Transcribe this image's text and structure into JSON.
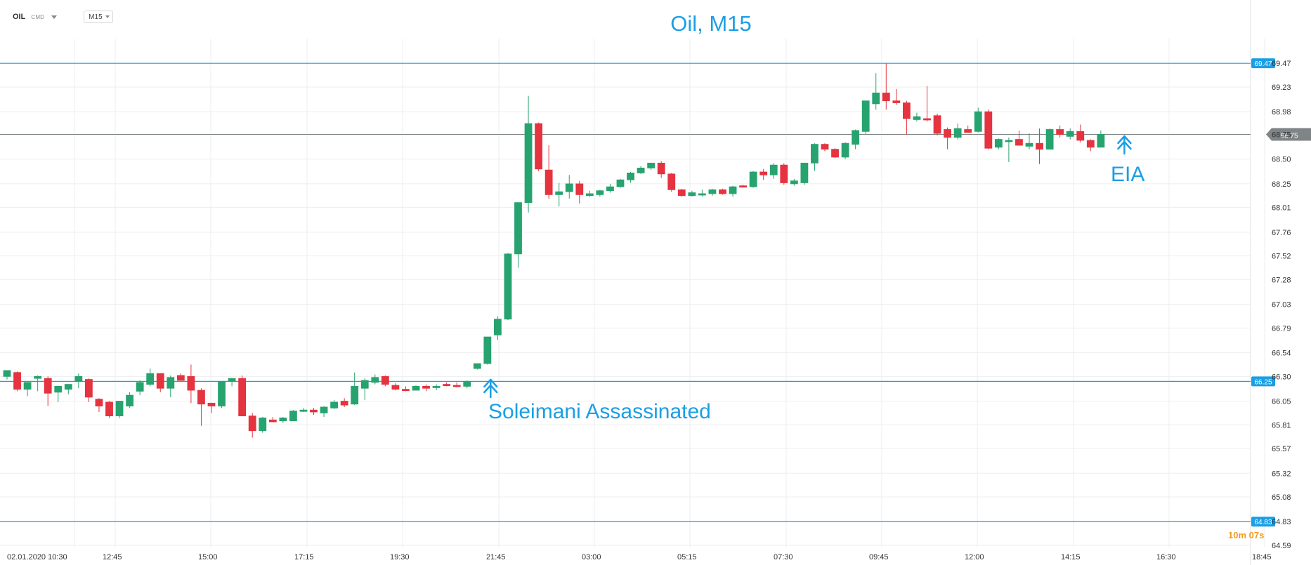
{
  "header": {
    "symbol": "OIL",
    "market": "CMD",
    "timeframe": "M15"
  },
  "colors": {
    "up": "#26a36f",
    "down": "#e5333f",
    "blue": "#1a9fe6",
    "gray": "#7f8486",
    "grid": "#eeeeee",
    "timer": "#f29a19"
  },
  "icons": {
    "annotation_arrow": "up-arrow-icon",
    "dropdown": "chevron-down-icon"
  },
  "chart_data": {
    "type": "candlestick",
    "title": "Oil, M15",
    "timeframe": "M15",
    "x_axis_labels": [
      "02.01.2020  10:30",
      "12:45",
      "15:00",
      "17:15",
      "19:30",
      "21:45",
      "03:00",
      "05:15",
      "07:30",
      "09:45",
      "12:00",
      "14:15",
      "16:30",
      "18:45"
    ],
    "y_ticks": [
      69.47,
      69.23,
      68.98,
      68.75,
      68.5,
      68.25,
      68.01,
      67.76,
      67.52,
      67.28,
      67.03,
      66.79,
      66.54,
      66.3,
      66.05,
      65.81,
      65.57,
      65.32,
      65.08,
      64.83,
      64.59
    ],
    "y_range": [
      64.59,
      69.72
    ],
    "candles": [
      {
        "o": 66.3,
        "h": 66.36,
        "l": 66.27,
        "c": 66.36
      },
      {
        "o": 66.34,
        "h": 66.35,
        "l": 66.15,
        "c": 66.17
      },
      {
        "o": 66.17,
        "h": 66.24,
        "l": 66.1,
        "c": 66.24
      },
      {
        "o": 66.28,
        "h": 66.31,
        "l": 66.15,
        "c": 66.3
      },
      {
        "o": 66.28,
        "h": 66.3,
        "l": 66.0,
        "c": 66.13
      },
      {
        "o": 66.14,
        "h": 66.19,
        "l": 66.04,
        "c": 66.2
      },
      {
        "o": 66.17,
        "h": 66.22,
        "l": 66.12,
        "c": 66.22
      },
      {
        "o": 66.25,
        "h": 66.33,
        "l": 66.18,
        "c": 66.3
      },
      {
        "o": 66.27,
        "h": 66.28,
        "l": 66.04,
        "c": 66.09
      },
      {
        "o": 66.07,
        "h": 66.08,
        "l": 65.94,
        "c": 66.0
      },
      {
        "o": 66.04,
        "h": 66.05,
        "l": 65.88,
        "c": 65.9
      },
      {
        "o": 65.9,
        "h": 66.04,
        "l": 65.88,
        "c": 66.05
      },
      {
        "o": 66.0,
        "h": 66.14,
        "l": 65.98,
        "c": 66.11
      },
      {
        "o": 66.15,
        "h": 66.26,
        "l": 66.11,
        "c": 66.24
      },
      {
        "o": 66.22,
        "h": 66.38,
        "l": 66.2,
        "c": 66.33
      },
      {
        "o": 66.33,
        "h": 66.33,
        "l": 66.14,
        "c": 66.18
      },
      {
        "o": 66.18,
        "h": 66.31,
        "l": 66.09,
        "c": 66.29
      },
      {
        "o": 66.31,
        "h": 66.33,
        "l": 66.26,
        "c": 66.26
      },
      {
        "o": 66.3,
        "h": 66.42,
        "l": 66.03,
        "c": 66.16
      },
      {
        "o": 66.16,
        "h": 66.18,
        "l": 65.8,
        "c": 66.02
      },
      {
        "o": 66.03,
        "h": 66.03,
        "l": 65.93,
        "c": 66.0
      },
      {
        "o": 66.0,
        "h": 66.25,
        "l": 65.98,
        "c": 66.25
      },
      {
        "o": 66.25,
        "h": 66.28,
        "l": 66.2,
        "c": 66.28
      },
      {
        "o": 66.28,
        "h": 66.31,
        "l": 65.9,
        "c": 65.9
      },
      {
        "o": 65.9,
        "h": 65.93,
        "l": 65.68,
        "c": 65.75
      },
      {
        "o": 65.75,
        "h": 65.89,
        "l": 65.73,
        "c": 65.88
      },
      {
        "o": 65.86,
        "h": 65.89,
        "l": 65.84,
        "c": 65.84
      },
      {
        "o": 65.85,
        "h": 65.89,
        "l": 65.83,
        "c": 65.88
      },
      {
        "o": 65.85,
        "h": 65.96,
        "l": 65.85,
        "c": 65.95
      },
      {
        "o": 65.95,
        "h": 65.98,
        "l": 65.94,
        "c": 65.96
      },
      {
        "o": 65.96,
        "h": 65.98,
        "l": 65.91,
        "c": 65.94
      },
      {
        "o": 65.93,
        "h": 66.0,
        "l": 65.89,
        "c": 65.99
      },
      {
        "o": 65.98,
        "h": 66.06,
        "l": 65.97,
        "c": 66.04
      },
      {
        "o": 66.05,
        "h": 66.08,
        "l": 65.99,
        "c": 66.01
      },
      {
        "o": 66.02,
        "h": 66.34,
        "l": 66.01,
        "c": 66.2
      },
      {
        "o": 66.18,
        "h": 66.28,
        "l": 66.06,
        "c": 66.26
      },
      {
        "o": 66.24,
        "h": 66.32,
        "l": 66.22,
        "c": 66.29
      },
      {
        "o": 66.3,
        "h": 66.31,
        "l": 66.2,
        "c": 66.22
      },
      {
        "o": 66.21,
        "h": 66.23,
        "l": 66.16,
        "c": 66.17
      },
      {
        "o": 66.17,
        "h": 66.2,
        "l": 66.15,
        "c": 66.16
      },
      {
        "o": 66.16,
        "h": 66.21,
        "l": 66.16,
        "c": 66.2
      },
      {
        "o": 66.2,
        "h": 66.22,
        "l": 66.15,
        "c": 66.18
      },
      {
        "o": 66.19,
        "h": 66.22,
        "l": 66.16,
        "c": 66.2
      },
      {
        "o": 66.22,
        "h": 66.24,
        "l": 66.2,
        "c": 66.21
      },
      {
        "o": 66.21,
        "h": 66.24,
        "l": 66.19,
        "c": 66.2
      },
      {
        "o": 66.2,
        "h": 66.26,
        "l": 66.18,
        "c": 66.25
      },
      {
        "o": 66.38,
        "h": 66.43,
        "l": 66.37,
        "c": 66.43
      },
      {
        "o": 66.43,
        "h": 66.7,
        "l": 66.42,
        "c": 66.7
      },
      {
        "o": 66.72,
        "h": 66.91,
        "l": 66.67,
        "c": 66.88
      },
      {
        "o": 66.88,
        "h": 67.55,
        "l": 66.87,
        "c": 67.54
      },
      {
        "o": 67.54,
        "h": 68.06,
        "l": 67.4,
        "c": 68.06
      },
      {
        "o": 68.06,
        "h": 69.14,
        "l": 67.96,
        "c": 68.86
      },
      {
        "o": 68.86,
        "h": 68.87,
        "l": 68.38,
        "c": 68.4
      },
      {
        "o": 68.39,
        "h": 68.64,
        "l": 68.1,
        "c": 68.14
      },
      {
        "o": 68.14,
        "h": 68.26,
        "l": 68.02,
        "c": 68.17
      },
      {
        "o": 68.17,
        "h": 68.34,
        "l": 68.1,
        "c": 68.25
      },
      {
        "o": 68.25,
        "h": 68.28,
        "l": 68.05,
        "c": 68.14
      },
      {
        "o": 68.13,
        "h": 68.18,
        "l": 68.12,
        "c": 68.15
      },
      {
        "o": 68.14,
        "h": 68.19,
        "l": 68.12,
        "c": 68.18
      },
      {
        "o": 68.18,
        "h": 68.25,
        "l": 68.16,
        "c": 68.22
      },
      {
        "o": 68.22,
        "h": 68.3,
        "l": 68.21,
        "c": 68.29
      },
      {
        "o": 68.29,
        "h": 68.37,
        "l": 68.26,
        "c": 68.36
      },
      {
        "o": 68.36,
        "h": 68.43,
        "l": 68.35,
        "c": 68.41
      },
      {
        "o": 68.41,
        "h": 68.46,
        "l": 68.39,
        "c": 68.46
      },
      {
        "o": 68.46,
        "h": 68.48,
        "l": 68.31,
        "c": 68.35
      },
      {
        "o": 68.35,
        "h": 68.36,
        "l": 68.17,
        "c": 68.19
      },
      {
        "o": 68.19,
        "h": 68.2,
        "l": 68.12,
        "c": 68.13
      },
      {
        "o": 68.13,
        "h": 68.18,
        "l": 68.12,
        "c": 68.16
      },
      {
        "o": 68.14,
        "h": 68.19,
        "l": 68.12,
        "c": 68.15
      },
      {
        "o": 68.15,
        "h": 68.2,
        "l": 68.13,
        "c": 68.19
      },
      {
        "o": 68.19,
        "h": 68.2,
        "l": 68.14,
        "c": 68.15
      },
      {
        "o": 68.15,
        "h": 68.23,
        "l": 68.12,
        "c": 68.22
      },
      {
        "o": 68.23,
        "h": 68.24,
        "l": 68.21,
        "c": 68.22
      },
      {
        "o": 68.22,
        "h": 68.38,
        "l": 68.21,
        "c": 68.37
      },
      {
        "o": 68.37,
        "h": 68.4,
        "l": 68.29,
        "c": 68.34
      },
      {
        "o": 68.34,
        "h": 68.46,
        "l": 68.3,
        "c": 68.44
      },
      {
        "o": 68.44,
        "h": 68.46,
        "l": 68.24,
        "c": 68.26
      },
      {
        "o": 68.25,
        "h": 68.3,
        "l": 68.23,
        "c": 68.28
      },
      {
        "o": 68.26,
        "h": 68.46,
        "l": 68.24,
        "c": 68.46
      },
      {
        "o": 68.46,
        "h": 68.66,
        "l": 68.38,
        "c": 68.65
      },
      {
        "o": 68.65,
        "h": 68.66,
        "l": 68.58,
        "c": 68.6
      },
      {
        "o": 68.6,
        "h": 68.61,
        "l": 68.51,
        "c": 68.52
      },
      {
        "o": 68.52,
        "h": 68.67,
        "l": 68.5,
        "c": 68.66
      },
      {
        "o": 68.65,
        "h": 68.8,
        "l": 68.6,
        "c": 68.79
      },
      {
        "o": 68.78,
        "h": 69.09,
        "l": 68.75,
        "c": 69.09
      },
      {
        "o": 69.06,
        "h": 69.37,
        "l": 69.0,
        "c": 69.17
      },
      {
        "o": 69.17,
        "h": 69.47,
        "l": 69.0,
        "c": 69.09
      },
      {
        "o": 69.09,
        "h": 69.21,
        "l": 69.05,
        "c": 69.07
      },
      {
        "o": 69.07,
        "h": 69.09,
        "l": 68.75,
        "c": 68.91
      },
      {
        "o": 68.9,
        "h": 68.97,
        "l": 68.88,
        "c": 68.93
      },
      {
        "o": 68.91,
        "h": 69.24,
        "l": 68.88,
        "c": 68.9
      },
      {
        "o": 68.94,
        "h": 68.96,
        "l": 68.74,
        "c": 68.76
      },
      {
        "o": 68.8,
        "h": 68.82,
        "l": 68.6,
        "c": 68.72
      },
      {
        "o": 68.72,
        "h": 68.86,
        "l": 68.7,
        "c": 68.81
      },
      {
        "o": 68.8,
        "h": 68.84,
        "l": 68.77,
        "c": 68.77
      },
      {
        "o": 68.78,
        "h": 69.02,
        "l": 68.77,
        "c": 68.98
      },
      {
        "o": 68.98,
        "h": 69.0,
        "l": 68.6,
        "c": 68.61
      },
      {
        "o": 68.62,
        "h": 68.71,
        "l": 68.6,
        "c": 68.7
      },
      {
        "o": 68.68,
        "h": 68.72,
        "l": 68.47,
        "c": 68.69
      },
      {
        "o": 68.7,
        "h": 68.79,
        "l": 68.64,
        "c": 68.64
      },
      {
        "o": 68.63,
        "h": 68.76,
        "l": 68.6,
        "c": 68.66
      },
      {
        "o": 68.66,
        "h": 68.81,
        "l": 68.45,
        "c": 68.6
      },
      {
        "o": 68.6,
        "h": 68.81,
        "l": 68.6,
        "c": 68.8
      },
      {
        "o": 68.8,
        "h": 68.84,
        "l": 68.72,
        "c": 68.75
      },
      {
        "o": 68.73,
        "h": 68.81,
        "l": 68.7,
        "c": 68.78
      },
      {
        "o": 68.78,
        "h": 68.85,
        "l": 68.67,
        "c": 68.69
      },
      {
        "o": 68.69,
        "h": 68.7,
        "l": 68.58,
        "c": 68.62
      },
      {
        "o": 68.62,
        "h": 68.79,
        "l": 68.62,
        "c": 68.75
      }
    ],
    "horizontal_lines": [
      {
        "price": 69.47,
        "label": "69.47"
      },
      {
        "price": 66.25,
        "label": "66.25"
      },
      {
        "price": 64.83,
        "label": "64.83"
      }
    ],
    "current_price": {
      "price": 68.75,
      "label": "68.75"
    },
    "annotations": [
      {
        "text": "Soleimani Assassinated",
        "candle_index": 46,
        "arrow": "up-arrow-icon"
      },
      {
        "text": "EIA",
        "candle_index": 108,
        "arrow": "up-arrow-icon"
      }
    ],
    "countdown": {
      "minutes": "10",
      "minutes_unit": "m",
      "seconds": "07",
      "seconds_unit": "s"
    },
    "grid": true
  }
}
